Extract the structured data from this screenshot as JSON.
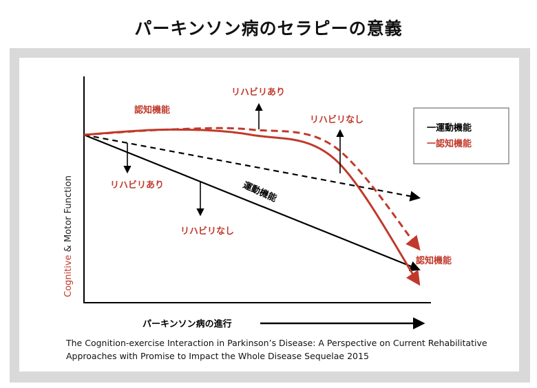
{
  "title": "パーキンソン病のセラピーの意義",
  "caption": {
    "line1": "The Cognition-exercise Interaction in Parkinson’s Disease: A Perspective on Current Rehabilitative",
    "line2": "Approaches with Promise to Impact the Whole Disease Sequelae 2015"
  },
  "chart_data": {
    "type": "line",
    "title": "パーキンソン病のセラピーの意義",
    "ylabel": {
      "part1": "Cognitive",
      "part2": " & Motor Function"
    },
    "xlabel": "パーキンソン病の進行",
    "x": [
      0,
      0.25,
      0.5,
      0.75,
      1.0
    ],
    "series": [
      {
        "name": "運動機能",
        "condition": "リハビリなし",
        "style": "solid",
        "color": "#000000",
        "values": [
          1.0,
          0.81,
          0.62,
          0.42,
          0.23
        ]
      },
      {
        "name": "運動機能",
        "condition": "リハビリあり",
        "style": "dashed",
        "color": "#000000",
        "values": [
          1.0,
          0.91,
          0.83,
          0.74,
          0.64
        ]
      },
      {
        "name": "認知機能",
        "condition": "リハビリなし",
        "style": "solid",
        "color": "#c0392b",
        "values": [
          1.0,
          1.03,
          1.0,
          0.86,
          0.15
        ]
      },
      {
        "name": "認知機能",
        "condition": "リハビリあり",
        "style": "dashed",
        "color": "#c0392b",
        "values": [
          1.0,
          1.03,
          1.03,
          0.93,
          0.35
        ]
      }
    ],
    "legend": {
      "position": "top-right",
      "items": [
        {
          "label": "一運動機能",
          "color": "#000000"
        },
        {
          "label": "一認知機能",
          "color": "#c0392b"
        }
      ]
    },
    "annotations": {
      "cog_label": "認知機能",
      "cog_reha_yes": "リハビリあり",
      "cog_reha_no": "リハビリなし",
      "motor_reha_yes": "リハビリあり",
      "motor_label": "運動機能",
      "motor_reha_no": "リハビリなし",
      "cog_end_label": "認知機能"
    },
    "colors": {
      "red": "#c0392b",
      "black": "#000000"
    }
  }
}
